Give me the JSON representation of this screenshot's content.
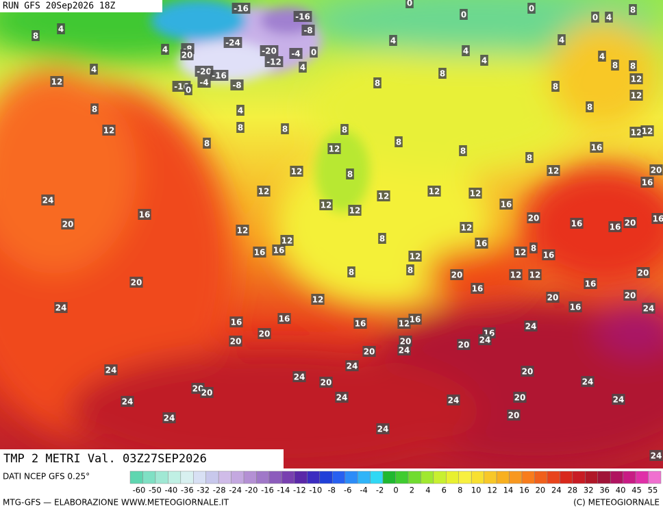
{
  "header": {
    "run": "RUN GFS 20Sep2026 18Z"
  },
  "title": "TMP 2 METRI Val. 03Z27SEP2026",
  "source": "DATI NCEP GFS 0.25°",
  "footer_left": "MTG-GFS — ELABORAZIONE WWW.METEOGIORNALE.IT",
  "footer_right": "(C) METEOGIORNALE",
  "colorbar": {
    "ticks": [
      -60,
      -50,
      -40,
      -36,
      -32,
      -28,
      -24,
      -20,
      -16,
      -14,
      -12,
      -10,
      -8,
      -6,
      -4,
      -2,
      0,
      2,
      4,
      6,
      8,
      10,
      12,
      14,
      16,
      20,
      24,
      28,
      32,
      36,
      40,
      45,
      55
    ],
    "colors": [
      "#5fd6b0",
      "#7fe0c4",
      "#a0e8d4",
      "#c0f0e4",
      "#d8f0f0",
      "#d8e0f4",
      "#c8c8ec",
      "#d0bce8",
      "#c4a8e0",
      "#b490d4",
      "#a078c8",
      "#8c5cbc",
      "#7840b0",
      "#5a28a8",
      "#3c2cc0",
      "#2040d8",
      "#2860f0",
      "#2c8cf8",
      "#30b4f8",
      "#30d8f4",
      "#20b830",
      "#40cc30",
      "#70dc30",
      "#a0e830",
      "#c8f030",
      "#e8f030",
      "#f8f040",
      "#f8e030",
      "#f8c828",
      "#f8b020",
      "#f89820",
      "#f87c1c",
      "#f0601c",
      "#e8441c",
      "#d8281c",
      "#c81c24",
      "#b01828",
      "#a01438",
      "#b01460",
      "#c81c84",
      "#e030a8",
      "#f070d0"
    ]
  },
  "map_labels": [
    -16,
    -16,
    -8,
    -24,
    -20,
    -4,
    0,
    -12,
    -8,
    4,
    -20,
    -16,
    -4,
    -8,
    -16,
    0,
    4,
    4,
    0,
    0,
    0,
    0,
    4,
    8,
    4,
    8,
    4,
    4,
    4,
    4,
    4,
    8,
    8,
    4,
    12,
    8,
    8,
    8,
    12,
    12,
    8,
    8,
    8,
    8,
    12,
    8,
    8,
    8,
    12,
    8,
    8,
    16,
    12,
    12,
    12,
    8,
    12,
    20,
    16,
    12,
    12,
    12,
    12,
    16,
    24,
    12,
    12,
    16,
    20,
    20,
    16,
    16,
    20,
    16,
    12,
    12,
    8,
    12,
    16,
    16,
    16,
    8,
    12,
    16,
    12,
    8,
    8,
    20,
    12,
    12,
    20,
    16,
    16,
    20,
    20,
    20,
    12,
    24,
    16,
    24,
    16,
    16,
    16,
    12,
    16,
    24,
    20,
    16,
    24,
    20,
    20,
    24,
    20,
    20,
    24,
    24,
    24,
    20,
    20,
    24,
    20,
    20,
    24,
    24,
    24,
    20,
    24,
    24,
    20,
    24,
    24,
    20
  ]
}
